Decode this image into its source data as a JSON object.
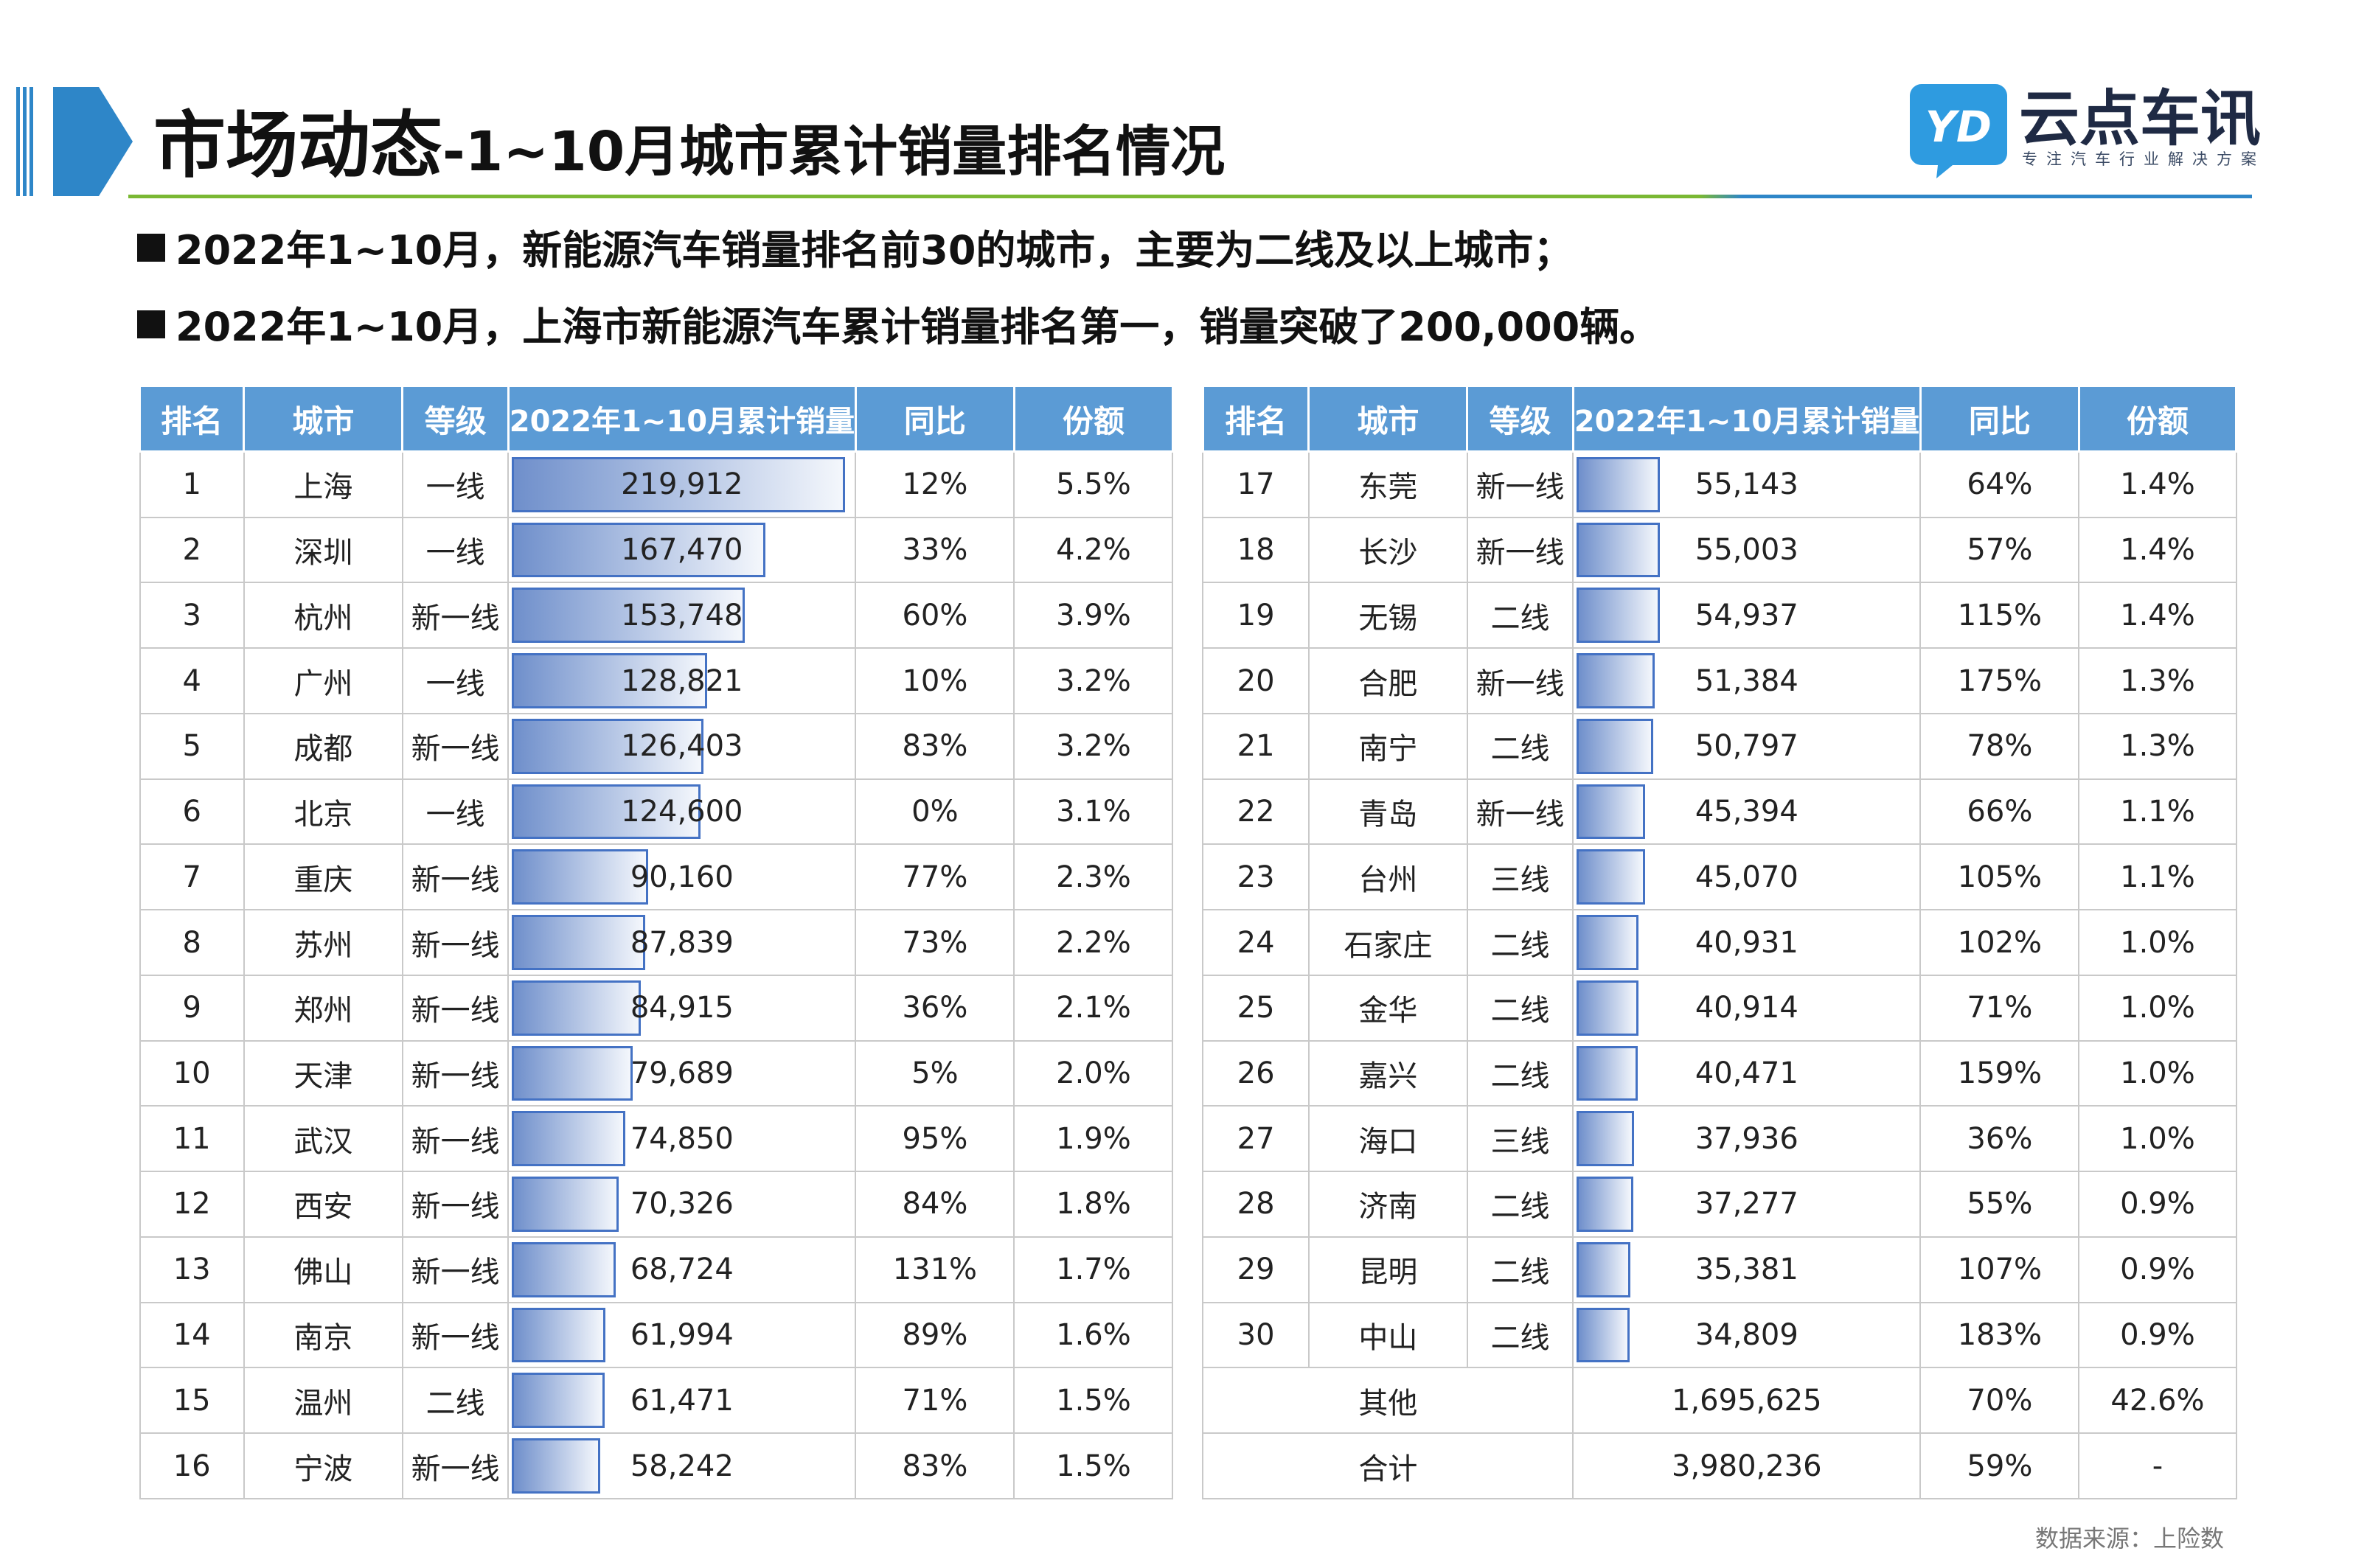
{
  "header": {
    "title_main": "市场动态",
    "title_sub": "-1~10月城市累计销量排名情况",
    "accent_colors": {
      "blue": "#2e86c8",
      "green": "#7ab833",
      "bar": "#4472c4",
      "header_bg": "#5b9bd5"
    }
  },
  "logo": {
    "mark_text": "YD",
    "name": "云点车讯",
    "slogan": "专注汽车行业解决方案"
  },
  "bullets": [
    "2022年1~10月，新能源汽车销量排名前30的城市，主要为二线及以上城市；",
    "2022年1~10月，上海市新能源汽车累计销量排名第一，销量突破了200,000辆。"
  ],
  "table": {
    "headers": [
      "排名",
      "城市",
      "等级",
      "2022年1~10月累计销量",
      "同比",
      "份额"
    ],
    "left": [
      {
        "rank": "1",
        "city": "上海",
        "tier": "一线",
        "sales": 219912,
        "sales_text": "219,912",
        "yoy": "12%",
        "share": "5.5%"
      },
      {
        "rank": "2",
        "city": "深圳",
        "tier": "一线",
        "sales": 167470,
        "sales_text": "167,470",
        "yoy": "33%",
        "share": "4.2%"
      },
      {
        "rank": "3",
        "city": "杭州",
        "tier": "新一线",
        "sales": 153748,
        "sales_text": "153,748",
        "yoy": "60%",
        "share": "3.9%"
      },
      {
        "rank": "4",
        "city": "广州",
        "tier": "一线",
        "sales": 128821,
        "sales_text": "128,821",
        "yoy": "10%",
        "share": "3.2%"
      },
      {
        "rank": "5",
        "city": "成都",
        "tier": "新一线",
        "sales": 126403,
        "sales_text": "126,403",
        "yoy": "83%",
        "share": "3.2%"
      },
      {
        "rank": "6",
        "city": "北京",
        "tier": "一线",
        "sales": 124600,
        "sales_text": "124,600",
        "yoy": "0%",
        "share": "3.1%"
      },
      {
        "rank": "7",
        "city": "重庆",
        "tier": "新一线",
        "sales": 90160,
        "sales_text": "90,160",
        "yoy": "77%",
        "share": "2.3%"
      },
      {
        "rank": "8",
        "city": "苏州",
        "tier": "新一线",
        "sales": 87839,
        "sales_text": "87,839",
        "yoy": "73%",
        "share": "2.2%"
      },
      {
        "rank": "9",
        "city": "郑州",
        "tier": "新一线",
        "sales": 84915,
        "sales_text": "84,915",
        "yoy": "36%",
        "share": "2.1%"
      },
      {
        "rank": "10",
        "city": "天津",
        "tier": "新一线",
        "sales": 79689,
        "sales_text": "79,689",
        "yoy": "5%",
        "share": "2.0%"
      },
      {
        "rank": "11",
        "city": "武汉",
        "tier": "新一线",
        "sales": 74850,
        "sales_text": "74,850",
        "yoy": "95%",
        "share": "1.9%"
      },
      {
        "rank": "12",
        "city": "西安",
        "tier": "新一线",
        "sales": 70326,
        "sales_text": "70,326",
        "yoy": "84%",
        "share": "1.8%"
      },
      {
        "rank": "13",
        "city": "佛山",
        "tier": "新一线",
        "sales": 68724,
        "sales_text": "68,724",
        "yoy": "131%",
        "share": "1.7%"
      },
      {
        "rank": "14",
        "city": "南京",
        "tier": "新一线",
        "sales": 61994,
        "sales_text": "61,994",
        "yoy": "89%",
        "share": "1.6%"
      },
      {
        "rank": "15",
        "city": "温州",
        "tier": "二线",
        "sales": 61471,
        "sales_text": "61,471",
        "yoy": "71%",
        "share": "1.5%"
      },
      {
        "rank": "16",
        "city": "宁波",
        "tier": "新一线",
        "sales": 58242,
        "sales_text": "58,242",
        "yoy": "83%",
        "share": "1.5%"
      }
    ],
    "right": [
      {
        "rank": "17",
        "city": "东莞",
        "tier": "新一线",
        "sales": 55143,
        "sales_text": "55,143",
        "yoy": "64%",
        "share": "1.4%"
      },
      {
        "rank": "18",
        "city": "长沙",
        "tier": "新一线",
        "sales": 55003,
        "sales_text": "55,003",
        "yoy": "57%",
        "share": "1.4%"
      },
      {
        "rank": "19",
        "city": "无锡",
        "tier": "二线",
        "sales": 54937,
        "sales_text": "54,937",
        "yoy": "115%",
        "share": "1.4%"
      },
      {
        "rank": "20",
        "city": "合肥",
        "tier": "新一线",
        "sales": 51384,
        "sales_text": "51,384",
        "yoy": "175%",
        "share": "1.3%"
      },
      {
        "rank": "21",
        "city": "南宁",
        "tier": "二线",
        "sales": 50797,
        "sales_text": "50,797",
        "yoy": "78%",
        "share": "1.3%"
      },
      {
        "rank": "22",
        "city": "青岛",
        "tier": "新一线",
        "sales": 45394,
        "sales_text": "45,394",
        "yoy": "66%",
        "share": "1.1%"
      },
      {
        "rank": "23",
        "city": "台州",
        "tier": "三线",
        "sales": 45070,
        "sales_text": "45,070",
        "yoy": "105%",
        "share": "1.1%"
      },
      {
        "rank": "24",
        "city": "石家庄",
        "tier": "二线",
        "sales": 40931,
        "sales_text": "40,931",
        "yoy": "102%",
        "share": "1.0%"
      },
      {
        "rank": "25",
        "city": "金华",
        "tier": "二线",
        "sales": 40914,
        "sales_text": "40,914",
        "yoy": "71%",
        "share": "1.0%"
      },
      {
        "rank": "26",
        "city": "嘉兴",
        "tier": "二线",
        "sales": 40471,
        "sales_text": "40,471",
        "yoy": "159%",
        "share": "1.0%"
      },
      {
        "rank": "27",
        "city": "海口",
        "tier": "三线",
        "sales": 37936,
        "sales_text": "37,936",
        "yoy": "36%",
        "share": "1.0%"
      },
      {
        "rank": "28",
        "city": "济南",
        "tier": "二线",
        "sales": 37277,
        "sales_text": "37,277",
        "yoy": "55%",
        "share": "0.9%"
      },
      {
        "rank": "29",
        "city": "昆明",
        "tier": "二线",
        "sales": 35381,
        "sales_text": "35,381",
        "yoy": "107%",
        "share": "0.9%"
      },
      {
        "rank": "30",
        "city": "中山",
        "tier": "二线",
        "sales": 34809,
        "sales_text": "34,809",
        "yoy": "183%",
        "share": "0.9%"
      }
    ],
    "summary": [
      {
        "label": "其他",
        "sales_text": "1,695,625",
        "yoy": "70%",
        "share": "42.6%"
      },
      {
        "label": "合计",
        "sales_text": "3,980,236",
        "yoy": "59%",
        "share": "-"
      }
    ],
    "bar_max": 219912
  },
  "source": "数据来源：上险数"
}
